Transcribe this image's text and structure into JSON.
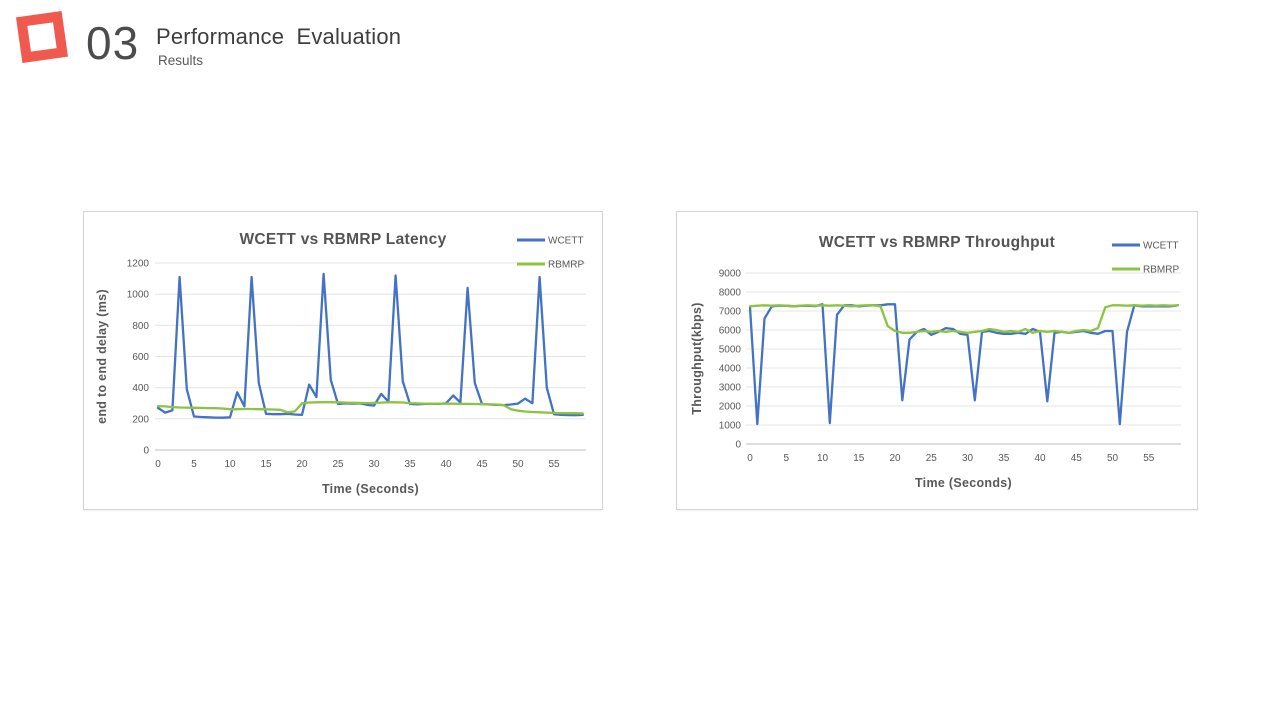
{
  "header": {
    "number": "03",
    "title": "Performance Evaluation",
    "subtitle": "Results"
  },
  "accent_color": "#F0594D",
  "chart_data": [
    {
      "type": "line",
      "title": "WCETT vs RBMRP Latency",
      "xlabel": "Time (Seconds)",
      "ylabel": "end to end delay (ms)",
      "legend_position": "top-right",
      "grid": true,
      "x_start": 0,
      "x_step": 1,
      "xlim": [
        0,
        59
      ],
      "ylim": [
        0,
        1200
      ],
      "x_ticks": [
        0,
        5,
        10,
        15,
        20,
        25,
        30,
        35,
        40,
        45,
        50,
        55
      ],
      "y_ticks": [
        0,
        200,
        400,
        600,
        800,
        1000,
        1200
      ],
      "series": [
        {
          "name": "WCETT",
          "color": "#4472C4",
          "values": [
            270,
            240,
            255,
            1110,
            390,
            215,
            212,
            210,
            208,
            207,
            210,
            370,
            280,
            1110,
            430,
            232,
            230,
            230,
            232,
            228,
            225,
            420,
            340,
            1130,
            450,
            295,
            300,
            298,
            300,
            290,
            285,
            360,
            310,
            1120,
            440,
            295,
            293,
            295,
            298,
            296,
            300,
            350,
            305,
            1040,
            430,
            295,
            292,
            290,
            288,
            292,
            298,
            330,
            300,
            1110,
            400,
            230,
            226,
            224,
            223,
            225
          ]
        },
        {
          "name": "RBMRP",
          "color": "#8CC43F",
          "values": [
            282,
            280,
            275,
            273,
            272,
            271,
            270,
            269,
            268,
            266,
            262,
            262,
            263,
            263,
            262,
            261,
            260,
            258,
            242,
            248,
            300,
            305,
            306,
            307,
            307,
            306,
            304,
            303,
            302,
            301,
            302,
            304,
            306,
            306,
            305,
            301,
            299,
            298,
            298,
            298,
            297,
            297,
            296,
            296,
            295,
            294,
            293,
            292,
            288,
            262,
            252,
            247,
            244,
            242,
            240,
            238,
            237,
            236,
            236,
            235
          ]
        }
      ]
    },
    {
      "type": "line",
      "title": "WCETT vs RBMRP Throughput",
      "xlabel": "Time (Seconds)",
      "ylabel": "Throughput(kbps)",
      "legend_position": "top-right",
      "grid": true,
      "x_start": 0,
      "x_step": 1,
      "xlim": [
        0,
        59
      ],
      "ylim": [
        0,
        9000
      ],
      "x_ticks": [
        0,
        5,
        10,
        15,
        20,
        25,
        30,
        35,
        40,
        45,
        50,
        55
      ],
      "y_ticks": [
        0,
        1000,
        2000,
        3000,
        4000,
        5000,
        6000,
        7000,
        8000,
        9000
      ],
      "series": [
        {
          "name": "WCETT",
          "color": "#4472C4",
          "values": [
            7200,
            1050,
            6600,
            7250,
            7280,
            7280,
            7250,
            7270,
            7280,
            7260,
            7350,
            1100,
            6800,
            7300,
            7300,
            7250,
            7280,
            7300,
            7300,
            7350,
            7350,
            2300,
            5500,
            5900,
            6050,
            5750,
            5900,
            6100,
            6050,
            5800,
            5750,
            2300,
            5900,
            5950,
            5850,
            5800,
            5800,
            5850,
            5800,
            6050,
            5900,
            2250,
            5850,
            5900,
            5850,
            5900,
            5950,
            5850,
            5800,
            5950,
            5950,
            1050,
            5900,
            7300,
            7250,
            7250,
            7250,
            7250,
            7250,
            7300
          ]
        },
        {
          "name": "RBMRP",
          "color": "#8CC43F",
          "values": [
            7250,
            7280,
            7300,
            7280,
            7300,
            7280,
            7250,
            7280,
            7300,
            7280,
            7300,
            7280,
            7300,
            7280,
            7250,
            7280,
            7300,
            7300,
            7250,
            6200,
            5950,
            5850,
            5850,
            5900,
            5950,
            5900,
            5950,
            5900,
            5950,
            5900,
            5850,
            5900,
            5950,
            6050,
            6000,
            5900,
            5950,
            5900,
            6050,
            5850,
            5950,
            5900,
            5950,
            5900,
            5850,
            5950,
            6000,
            5950,
            6100,
            7200,
            7300,
            7300,
            7280,
            7300,
            7280,
            7300,
            7280,
            7300,
            7280,
            7300
          ]
        }
      ]
    }
  ]
}
